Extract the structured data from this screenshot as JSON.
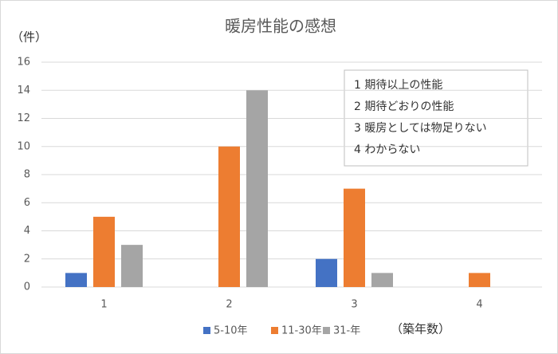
{
  "chart_data": {
    "type": "bar",
    "title": "暖房性能の感想",
    "y_label": "（件）",
    "x_label": "（築年数）",
    "categories": [
      "1",
      "2",
      "3",
      "4"
    ],
    "series": [
      {
        "name": "5-10年",
        "color": "#4472c4",
        "values": [
          1,
          0,
          2,
          0
        ]
      },
      {
        "name": "11-30年",
        "color": "#ed7d31",
        "values": [
          5,
          10,
          7,
          1
        ]
      },
      {
        "name": "31-年",
        "color": "#a5a5a5",
        "values": [
          3,
          14,
          1,
          0
        ]
      }
    ],
    "ylim": [
      0,
      16
    ],
    "yticks": [
      0,
      2,
      4,
      6,
      8,
      10,
      12,
      14,
      16
    ],
    "grid": true,
    "annotations": [
      "1 期待以上の性能",
      "2 期待どおりの性能",
      "3 暖房としては物足りない",
      "4 わからない"
    ]
  }
}
